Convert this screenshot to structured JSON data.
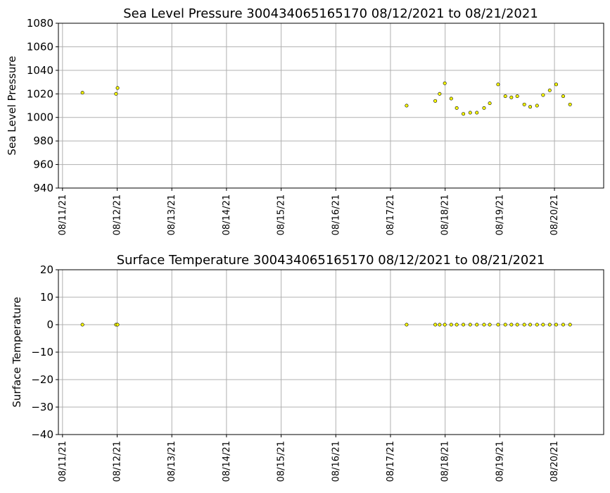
{
  "chart_data": [
    {
      "type": "scatter",
      "title": "Sea Level Pressure 300434065165170  08/12/2021 to 08/21/2021",
      "xlabel": "",
      "ylabel": "Sea Level Pressure",
      "ylim": [
        940,
        1080
      ],
      "yticks": [
        "940",
        "960",
        "980",
        "1000",
        "1020",
        "1040",
        "1060",
        "1080"
      ],
      "xlim": [
        "2021-08-10T22:12",
        "2021-08-20T21:36"
      ],
      "xticks": [
        "08/11/21",
        "08/12/21",
        "08/13/21",
        "08/14/21",
        "08/15/21",
        "08/16/21",
        "08/17/21",
        "08/18/21",
        "08/19/21",
        "08/20/21"
      ],
      "grid": true,
      "marker_color": "#ffff00",
      "marker_edge": "#000000",
      "points": [
        {
          "x": "2021-08-11T08:45",
          "y": 1021
        },
        {
          "x": "2021-08-11T23:30",
          "y": 1020
        },
        {
          "x": "2021-08-12T00:10",
          "y": 1025
        },
        {
          "x": "2021-08-17T07:05",
          "y": 1010
        },
        {
          "x": "2021-08-17T19:40",
          "y": 1014
        },
        {
          "x": "2021-08-17T21:35",
          "y": 1020
        },
        {
          "x": "2021-08-17T23:50",
          "y": 1029
        },
        {
          "x": "2021-08-18T02:40",
          "y": 1016
        },
        {
          "x": "2021-08-18T05:05",
          "y": 1008
        },
        {
          "x": "2021-08-18T08:00",
          "y": 1003
        },
        {
          "x": "2021-08-18T11:00",
          "y": 1004
        },
        {
          "x": "2021-08-18T13:55",
          "y": 1004
        },
        {
          "x": "2021-08-18T17:05",
          "y": 1008
        },
        {
          "x": "2021-08-18T19:35",
          "y": 1012
        },
        {
          "x": "2021-08-18T23:15",
          "y": 1028
        },
        {
          "x": "2021-08-19T02:25",
          "y": 1018
        },
        {
          "x": "2021-08-19T05:05",
          "y": 1017
        },
        {
          "x": "2021-08-19T07:40",
          "y": 1018
        },
        {
          "x": "2021-08-19T10:45",
          "y": 1011
        },
        {
          "x": "2021-08-19T13:20",
          "y": 1009
        },
        {
          "x": "2021-08-19T16:20",
          "y": 1010
        },
        {
          "x": "2021-08-19T19:00",
          "y": 1019
        },
        {
          "x": "2021-08-19T21:55",
          "y": 1023
        },
        {
          "x": "2021-08-20T00:45",
          "y": 1028
        },
        {
          "x": "2021-08-20T03:50",
          "y": 1018
        },
        {
          "x": "2021-08-20T06:50",
          "y": 1011
        }
      ]
    },
    {
      "type": "scatter",
      "title": "Surface Temperature 300434065165170  08/12/2021 to 08/21/2021",
      "xlabel": "",
      "ylabel": "Surface Temperature",
      "ylim": [
        -40,
        20
      ],
      "yticks": [
        "−40",
        "−30",
        "−20",
        "−10",
        "0",
        "10",
        "20"
      ],
      "xlim": [
        "2021-08-10T22:12",
        "2021-08-20T21:36"
      ],
      "xticks": [
        "08/11/21",
        "08/12/21",
        "08/13/21",
        "08/14/21",
        "08/15/21",
        "08/16/21",
        "08/17/21",
        "08/18/21",
        "08/19/21",
        "08/20/21"
      ],
      "grid": true,
      "marker_color": "#ffff00",
      "marker_edge": "#000000",
      "points": [
        {
          "x": "2021-08-11T08:45",
          "y": 0
        },
        {
          "x": "2021-08-11T23:30",
          "y": 0
        },
        {
          "x": "2021-08-12T00:10",
          "y": 0
        },
        {
          "x": "2021-08-17T07:05",
          "y": 0
        },
        {
          "x": "2021-08-17T19:40",
          "y": 0
        },
        {
          "x": "2021-08-17T21:35",
          "y": 0
        },
        {
          "x": "2021-08-17T23:50",
          "y": 0
        },
        {
          "x": "2021-08-18T02:40",
          "y": 0
        },
        {
          "x": "2021-08-18T05:05",
          "y": 0
        },
        {
          "x": "2021-08-18T08:00",
          "y": 0
        },
        {
          "x": "2021-08-18T11:00",
          "y": 0
        },
        {
          "x": "2021-08-18T13:55",
          "y": 0
        },
        {
          "x": "2021-08-18T17:05",
          "y": 0
        },
        {
          "x": "2021-08-18T19:35",
          "y": 0
        },
        {
          "x": "2021-08-18T23:15",
          "y": 0
        },
        {
          "x": "2021-08-19T02:25",
          "y": 0
        },
        {
          "x": "2021-08-19T05:05",
          "y": 0
        },
        {
          "x": "2021-08-19T07:40",
          "y": 0
        },
        {
          "x": "2021-08-19T10:45",
          "y": 0
        },
        {
          "x": "2021-08-19T13:20",
          "y": 0
        },
        {
          "x": "2021-08-19T16:20",
          "y": 0
        },
        {
          "x": "2021-08-19T19:00",
          "y": 0
        },
        {
          "x": "2021-08-19T21:55",
          "y": 0
        },
        {
          "x": "2021-08-20T00:45",
          "y": 0
        },
        {
          "x": "2021-08-20T03:50",
          "y": 0
        },
        {
          "x": "2021-08-20T06:50",
          "y": 0
        }
      ]
    }
  ]
}
